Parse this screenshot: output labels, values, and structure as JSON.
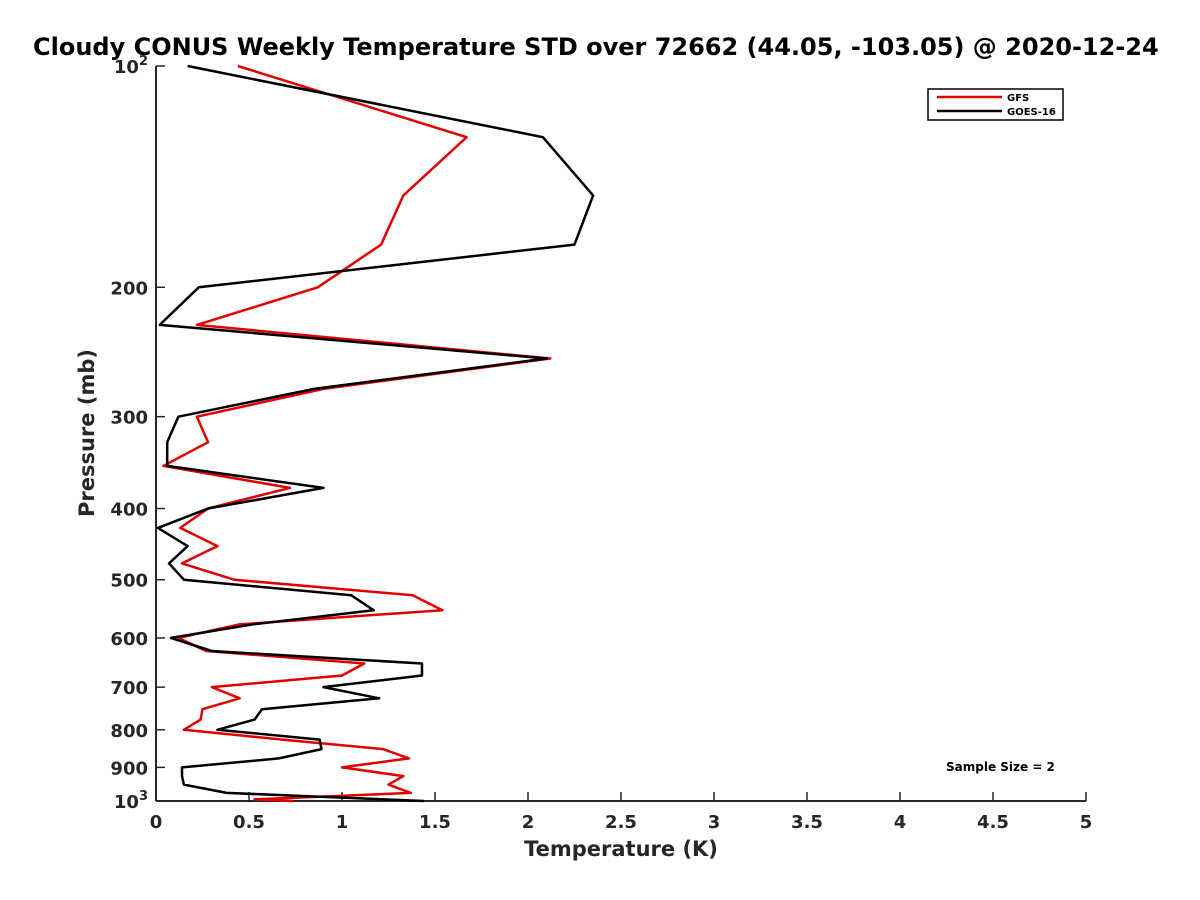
{
  "chart_data": {
    "type": "line",
    "title": "Cloudy CONUS Weekly Temperature STD over 72662 (44.05, -103.05) @ 2020-12-24",
    "xlabel": "Temperature (K)",
    "ylabel": "Pressure (mb)",
    "xlim": [
      0,
      5
    ],
    "ylim": [
      100,
      1000
    ],
    "y_scale": "log",
    "y_reversed": true,
    "x_ticks": [
      "0",
      "0.5",
      "1",
      "1.5",
      "2",
      "2.5",
      "3",
      "3.5",
      "4",
      "4.5",
      "5"
    ],
    "x_tick_values": [
      0,
      0.5,
      1,
      1.5,
      2,
      2.5,
      3,
      3.5,
      4,
      4.5,
      5
    ],
    "y_ticks": [
      {
        "value": 100,
        "base": "10",
        "exp": "2"
      },
      {
        "value": 200,
        "label": "200"
      },
      {
        "value": 300,
        "label": "300"
      },
      {
        "value": 400,
        "label": "400"
      },
      {
        "value": 500,
        "label": "500"
      },
      {
        "value": 600,
        "label": "600"
      },
      {
        "value": 700,
        "label": "700"
      },
      {
        "value": 800,
        "label": "800"
      },
      {
        "value": 900,
        "label": "900"
      },
      {
        "value": 1000,
        "base": "10",
        "exp": "3"
      }
    ],
    "grid": false,
    "legend_position": "top-right",
    "annotation": "Sample Size = 2",
    "series": [
      {
        "name": "GFS",
        "color": "#e00000",
        "points": [
          [
            0.44,
            100
          ],
          [
            1.67,
            125
          ],
          [
            1.33,
            150
          ],
          [
            1.21,
            175
          ],
          [
            0.87,
            200
          ],
          [
            0.22,
            225
          ],
          [
            2.12,
            250
          ],
          [
            0.9,
            275
          ],
          [
            0.22,
            300
          ],
          [
            0.28,
            325
          ],
          [
            0.04,
            350
          ],
          [
            0.72,
            375
          ],
          [
            0.28,
            400
          ],
          [
            0.13,
            425
          ],
          [
            0.33,
            450
          ],
          [
            0.14,
            475
          ],
          [
            0.42,
            500
          ],
          [
            1.38,
            525
          ],
          [
            1.54,
            550
          ],
          [
            0.45,
            575
          ],
          [
            0.12,
            600
          ],
          [
            0.27,
            625
          ],
          [
            1.12,
            650
          ],
          [
            1.0,
            675
          ],
          [
            0.3,
            700
          ],
          [
            0.45,
            725
          ],
          [
            0.25,
            750
          ],
          [
            0.24,
            775
          ],
          [
            0.15,
            800
          ],
          [
            0.68,
            825
          ],
          [
            1.22,
            850
          ],
          [
            1.36,
            875
          ],
          [
            1.0,
            900
          ],
          [
            1.33,
            925
          ],
          [
            1.25,
            950
          ],
          [
            1.37,
            975
          ],
          [
            0.53,
            995
          ],
          [
            0.74,
            1000
          ]
        ]
      },
      {
        "name": "GOES-16",
        "color": "#000000",
        "points": [
          [
            0.17,
            100
          ],
          [
            2.08,
            125
          ],
          [
            2.35,
            150
          ],
          [
            2.25,
            175
          ],
          [
            0.23,
            200
          ],
          [
            0.02,
            225
          ],
          [
            2.1,
            250
          ],
          [
            0.85,
            275
          ],
          [
            0.12,
            300
          ],
          [
            0.06,
            325
          ],
          [
            0.06,
            350
          ],
          [
            0.9,
            375
          ],
          [
            0.28,
            400
          ],
          [
            0.01,
            425
          ],
          [
            0.17,
            450
          ],
          [
            0.07,
            475
          ],
          [
            0.15,
            500
          ],
          [
            1.05,
            525
          ],
          [
            1.17,
            550
          ],
          [
            0.52,
            575
          ],
          [
            0.08,
            600
          ],
          [
            0.3,
            625
          ],
          [
            1.43,
            650
          ],
          [
            1.43,
            675
          ],
          [
            0.9,
            700
          ],
          [
            1.2,
            725
          ],
          [
            0.57,
            750
          ],
          [
            0.53,
            775
          ],
          [
            0.33,
            800
          ],
          [
            0.88,
            825
          ],
          [
            0.89,
            850
          ],
          [
            0.66,
            875
          ],
          [
            0.14,
            900
          ],
          [
            0.14,
            925
          ],
          [
            0.15,
            950
          ],
          [
            0.38,
            975
          ],
          [
            1.44,
            1000
          ]
        ]
      }
    ]
  }
}
